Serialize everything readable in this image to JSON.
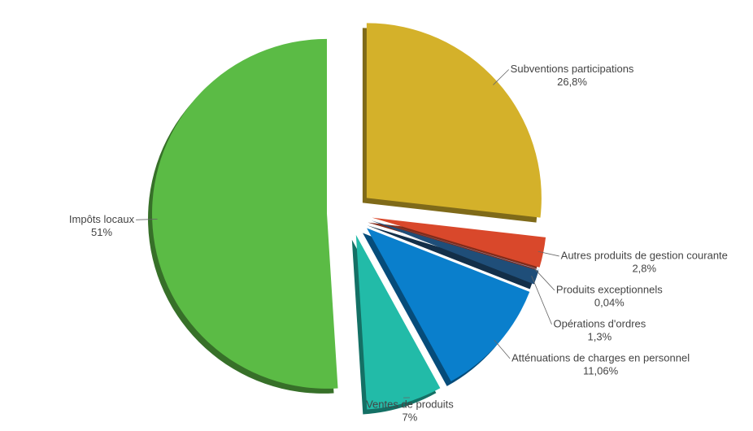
{
  "chart_data": {
    "type": "pie",
    "categories": [
      "Subventions participations",
      "Autres produits de gestion courante",
      "Produits exceptionnels",
      "Opérations d'ordres",
      "Atténuations de charges en personnel",
      "Ventes de produits",
      "Impôts locaux"
    ],
    "values": [
      26.8,
      2.8,
      0.04,
      1.3,
      11.06,
      7,
      51
    ],
    "value_labels": [
      "26,8%",
      "2,8%",
      "0,04%",
      "1,3%",
      "11,06%",
      "7%",
      "51%"
    ],
    "colors": [
      "#d4b12a",
      "#d9482b",
      "#8fb8e8",
      "#1f4e79",
      "#0a7fcc",
      "#22bba8",
      "#5bbb45"
    ]
  }
}
